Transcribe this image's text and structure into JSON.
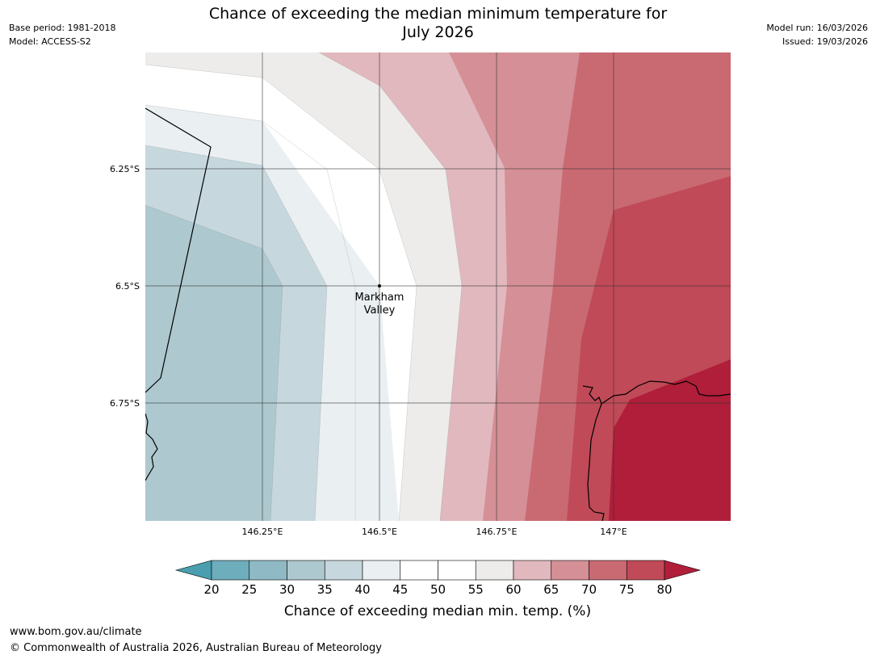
{
  "header": {
    "title_line1": "Chance of exceeding the median minimum temperature for",
    "title_line2": "July 2026",
    "base_period": "Base period: 1981-2018",
    "model": "Model: ACCESS-S2",
    "model_run": "Model run: 16/03/2026",
    "issued": "Issued: 19/03/2026"
  },
  "map": {
    "latitude_labels": [
      "6.25°S",
      "6.5°S",
      "6.75°S"
    ],
    "longitude_labels": [
      "146.25°E",
      "146.5°E",
      "146.75°E",
      "147°E"
    ],
    "place": {
      "name_line1": "Markham",
      "name_line2": "Valley"
    }
  },
  "colorbar": {
    "label": "Chance of exceeding median min. temp. (%)",
    "ticks": [
      "20",
      "25",
      "30",
      "35",
      "40",
      "45",
      "50",
      "55",
      "60",
      "65",
      "70",
      "75",
      "80"
    ],
    "colors": {
      "under": "#4a9eaf",
      "b20_25": "#6eadbb",
      "b25_30": "#8fbac5",
      "b30_35": "#adc8ce",
      "b35_40": "#c6d8dd",
      "b40_45": "#eaeff2",
      "b45_50": "#ffffff",
      "b50_55": "#ffffff",
      "b55_60": "#eeeceb",
      "b60_65": "#e1b8be",
      "b65_70": "#d58f96",
      "b70_75": "#c96a73",
      "b75_80": "#c04a57",
      "over": "#b01e3a"
    }
  },
  "footer": {
    "url": "www.bom.gov.au/climate",
    "copyright": "© Commonwealth of Australia 2026, Australian Bureau of Meteorology"
  }
}
